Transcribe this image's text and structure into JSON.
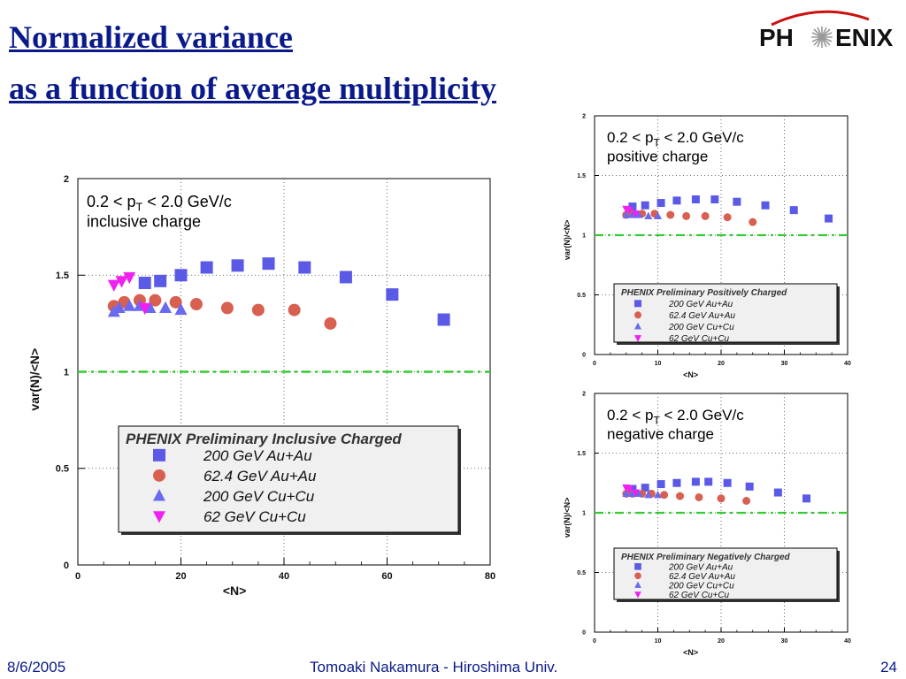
{
  "slide": {
    "title_line1": "Normalized variance",
    "title_line2": "as a function of average multiplicity",
    "logo_text_left": "PH",
    "logo_text_right": "ENIX",
    "footer_date": "8/6/2005",
    "footer_author": "Tomoaki Nakamura - Hiroshima Univ.",
    "footer_page": "24"
  },
  "colors": {
    "title": "#0a1a8a",
    "series_auau200": "#5a5ae6",
    "series_auau62": "#d86050",
    "series_cucu200": "#6a6af0",
    "series_cucu62": "#f020f0",
    "reference_line": "#33cc33",
    "legend_bg": "#f0f0f0"
  },
  "chart_data": [
    {
      "type": "scatter",
      "pt_label": "0.2 < p",
      "pt_sub": "T",
      "pt_tail": " < 2.0 GeV/c",
      "charge_label": "inclusive charge",
      "legend_title": "PHENIX Preliminary Inclusive Charged",
      "xlabel": "<N>",
      "ylabel": "var(N)/<N>",
      "xlim": [
        0,
        80
      ],
      "ylim": [
        0,
        2
      ],
      "xticks": [
        "0",
        "20",
        "40",
        "60",
        "80"
      ],
      "yticks": [
        "0",
        "0.5",
        "1",
        "1.5",
        "2"
      ],
      "grid": "dotted",
      "reference_line": 1,
      "series": [
        {
          "name": "200 GeV Au+Au",
          "marker": "square",
          "color": "#5a5ae6",
          "x": [
            13,
            16,
            20,
            25,
            31,
            37,
            44,
            52,
            61,
            71
          ],
          "y": [
            1.46,
            1.47,
            1.5,
            1.54,
            1.55,
            1.56,
            1.54,
            1.49,
            1.4,
            1.27
          ]
        },
        {
          "name": "62.4 GeV Au+Au",
          "marker": "circle",
          "color": "#d86050",
          "x": [
            7,
            9,
            12,
            15,
            19,
            23,
            29,
            35,
            42,
            49
          ],
          "y": [
            1.34,
            1.36,
            1.37,
            1.37,
            1.36,
            1.35,
            1.33,
            1.32,
            1.32,
            1.25
          ]
        },
        {
          "name": "200 GeV Cu+Cu",
          "marker": "triangle",
          "color": "#6a6af0",
          "x": [
            7,
            8,
            10,
            12,
            14,
            17,
            20
          ],
          "y": [
            1.31,
            1.33,
            1.34,
            1.34,
            1.33,
            1.33,
            1.32
          ]
        },
        {
          "name": "62 GeV Cu+Cu",
          "marker": "triangle-down",
          "color": "#f020f0",
          "x": [
            7,
            8.5,
            10,
            13
          ],
          "y": [
            1.45,
            1.47,
            1.49,
            1.33
          ]
        }
      ]
    },
    {
      "type": "scatter",
      "pt_label": "0.2 < p",
      "pt_sub": "T",
      "pt_tail": " < 2.0 GeV/c",
      "charge_label": "positive charge",
      "legend_title": "PHENIX Preliminary Positively Charged",
      "xlabel": "<N>",
      "ylabel": "var(N)/<N>",
      "xlim": [
        0,
        40
      ],
      "ylim": [
        0,
        2
      ],
      "xticks": [
        "0",
        "10",
        "20",
        "30",
        "40"
      ],
      "yticks": [
        "0",
        "0.5",
        "1",
        "1.5",
        "2"
      ],
      "grid": "dotted",
      "reference_line": 1,
      "series": [
        {
          "name": "200 GeV Au+Au",
          "marker": "square",
          "color": "#5a5ae6",
          "x": [
            6,
            8,
            10.5,
            13,
            16,
            19,
            22.5,
            27,
            31.5,
            37
          ],
          "y": [
            1.24,
            1.25,
            1.27,
            1.29,
            1.3,
            1.3,
            1.28,
            1.25,
            1.21,
            1.14
          ]
        },
        {
          "name": "62.4 GeV Au+Au",
          "marker": "circle",
          "color": "#d86050",
          "x": [
            5,
            6,
            7.5,
            9.5,
            12,
            14.5,
            17.5,
            21,
            25
          ],
          "y": [
            1.17,
            1.18,
            1.18,
            1.18,
            1.17,
            1.16,
            1.16,
            1.15,
            1.11
          ]
        },
        {
          "name": "200 GeV Cu+Cu",
          "marker": "triangle",
          "color": "#6a6af0",
          "x": [
            5,
            6,
            7,
            8.5,
            10
          ],
          "y": [
            1.17,
            1.17,
            1.17,
            1.16,
            1.16
          ]
        },
        {
          "name": "62 GeV Cu+Cu",
          "marker": "triangle-down",
          "color": "#f020f0",
          "x": [
            5,
            5.5,
            6.5
          ],
          "y": [
            1.22,
            1.21,
            1.18
          ]
        }
      ]
    },
    {
      "type": "scatter",
      "pt_label": "0.2 < p",
      "pt_sub": "T",
      "pt_tail": " < 2.0 GeV/c",
      "charge_label": "negative charge",
      "legend_title": "PHENIX Preliminary Negatively Charged",
      "xlabel": "<N>",
      "ylabel": "var(N)/<N>",
      "xlim": [
        0,
        40
      ],
      "ylim": [
        0,
        2
      ],
      "xticks": [
        "0",
        "10",
        "20",
        "30",
        "40"
      ],
      "yticks": [
        "0",
        "0.5",
        "1",
        "1.5",
        "2"
      ],
      "grid": "dotted",
      "reference_line": 1,
      "series": [
        {
          "name": "200 GeV Au+Au",
          "marker": "square",
          "color": "#5a5ae6",
          "x": [
            6,
            8,
            10.5,
            13,
            16,
            18,
            21,
            24.5,
            29,
            33.5
          ],
          "y": [
            1.2,
            1.21,
            1.24,
            1.25,
            1.26,
            1.26,
            1.25,
            1.22,
            1.17,
            1.12
          ]
        },
        {
          "name": "62.4 GeV Au+Au",
          "marker": "circle",
          "color": "#d86050",
          "x": [
            5,
            6,
            7.5,
            9,
            11,
            13.5,
            16.5,
            20,
            24
          ],
          "y": [
            1.16,
            1.16,
            1.16,
            1.16,
            1.15,
            1.14,
            1.13,
            1.12,
            1.1
          ]
        },
        {
          "name": "200 GeV Cu+Cu",
          "marker": "triangle",
          "color": "#6a6af0",
          "x": [
            5,
            6,
            7,
            8.5,
            10
          ],
          "y": [
            1.16,
            1.16,
            1.16,
            1.15,
            1.15
          ]
        },
        {
          "name": "62 GeV Cu+Cu",
          "marker": "triangle-down",
          "color": "#f020f0",
          "x": [
            5,
            5.5,
            6.5
          ],
          "y": [
            1.21,
            1.2,
            1.17
          ]
        }
      ]
    }
  ]
}
